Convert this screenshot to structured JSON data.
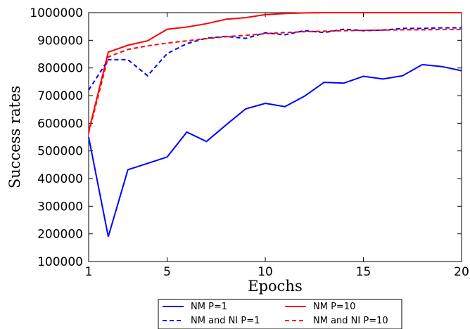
{
  "chart_data": {
    "type": "line",
    "xlabel": "Epochs",
    "ylabel": "Success rates",
    "xlim": [
      1,
      20
    ],
    "ylim": [
      100000,
      1000000
    ],
    "xticks": [
      1,
      5,
      10,
      15,
      20
    ],
    "yticks": [
      100000,
      200000,
      300000,
      400000,
      500000,
      600000,
      700000,
      800000,
      900000,
      1000000
    ],
    "grid": false,
    "legend_position": "bottom",
    "series": [
      {
        "name": "NM P=1",
        "color": "#0000ff",
        "dash": "solid",
        "x": [
          1,
          2,
          3,
          4,
          5,
          6,
          7,
          8,
          9,
          10,
          11,
          12,
          13,
          14,
          15,
          16,
          17,
          18,
          19,
          20
        ],
        "values": [
          550000,
          190000,
          432000,
          455000,
          478000,
          568000,
          534000,
          594000,
          652000,
          672000,
          660000,
          698000,
          748000,
          745000,
          770000,
          760000,
          772000,
          812000,
          805000,
          790000
        ]
      },
      {
        "name": "NM P=10",
        "color": "#ff0000",
        "dash": "solid",
        "x": [
          1,
          2,
          3,
          4,
          5,
          6,
          7,
          8,
          9,
          10,
          11,
          12,
          13,
          14,
          15,
          16,
          17,
          18,
          19,
          20
        ],
        "values": [
          570000,
          857000,
          882000,
          898000,
          940000,
          948000,
          960000,
          976000,
          982000,
          993000,
          997000,
          999000,
          1000000,
          1000000,
          1000000,
          1000000,
          1000000,
          1000000,
          1000000,
          1000000
        ]
      },
      {
        "name": "NM and NI P=1",
        "color": "#0000ff",
        "dash": "dashed",
        "x": [
          1,
          2,
          3,
          4,
          5,
          6,
          7,
          8,
          9,
          10,
          11,
          12,
          13,
          14,
          15,
          16,
          17,
          18,
          19,
          20
        ],
        "values": [
          720000,
          830000,
          830000,
          772000,
          852000,
          888000,
          908000,
          914000,
          907000,
          927000,
          920000,
          935000,
          928000,
          940000,
          935000,
          937000,
          943000,
          943000,
          945000,
          945000
        ]
      },
      {
        "name": "NM and NI P=10",
        "color": "#ff0000",
        "dash": "dashed",
        "x": [
          1,
          2,
          3,
          4,
          5,
          6,
          7,
          8,
          9,
          10,
          11,
          12,
          13,
          14,
          15,
          16,
          17,
          18,
          19,
          20
        ],
        "values": [
          565000,
          840000,
          867000,
          880000,
          890000,
          898000,
          906000,
          913000,
          918000,
          924000,
          928000,
          931000,
          933000,
          935000,
          936000,
          937000,
          938000,
          938000,
          939000,
          939000
        ]
      }
    ]
  }
}
